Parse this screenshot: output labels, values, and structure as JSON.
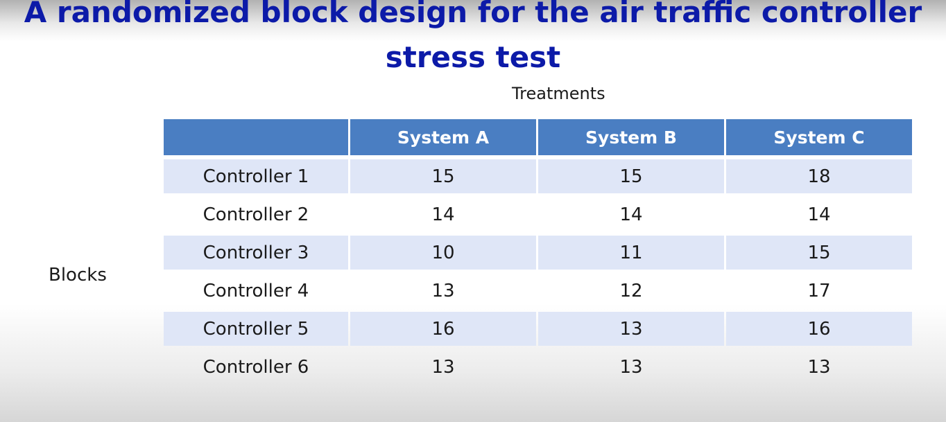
{
  "slide": {
    "title_line1": "A randomized block design for the air traffic controller",
    "title_line2": "stress test",
    "treatments_label": "Treatments",
    "blocks_label": "Blocks"
  },
  "table": {
    "headers": [
      "",
      "System A",
      "System B",
      "System C"
    ],
    "rows": [
      {
        "label": "Controller 1",
        "values": [
          "15",
          "15",
          "18"
        ]
      },
      {
        "label": "Controller 2",
        "values": [
          "14",
          "14",
          "14"
        ]
      },
      {
        "label": "Controller 3",
        "values": [
          "10",
          "11",
          "15"
        ]
      },
      {
        "label": "Controller 4",
        "values": [
          "13",
          "12",
          "17"
        ]
      },
      {
        "label": "Controller 5",
        "values": [
          "16",
          "13",
          "16"
        ]
      },
      {
        "label": "Controller 6",
        "values": [
          "13",
          "13",
          "13"
        ]
      }
    ]
  },
  "colors": {
    "title": "#0c1aa8",
    "header_fill": "#4a7ec2",
    "shaded_row_fill": "#dfe6f7"
  }
}
